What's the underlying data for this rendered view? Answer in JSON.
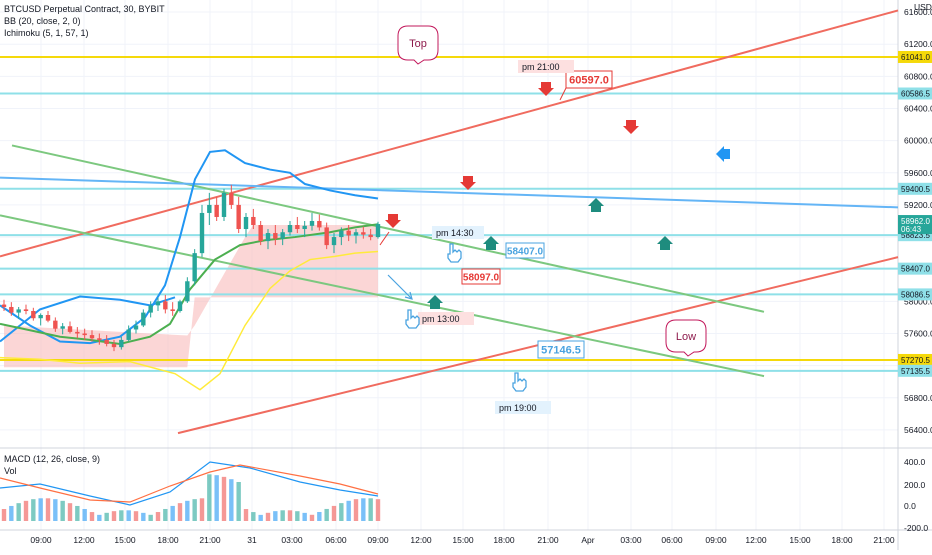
{
  "header": {
    "symbol_line": "BTCUSD Perpetual Contract, 30, BYBIT",
    "bb_line": "BB (20, close, 2, 0)",
    "ichimoku_line": "Ichimoku (5, 1, 57, 1)",
    "currency": "USD"
  },
  "macd_panel": {
    "macd_label": "MACD (12, 26, close, 9)",
    "vol_label": "Vol"
  },
  "colors": {
    "bull": "#26a69a",
    "bear": "#ef5350",
    "bb_line": "#2196f3",
    "ichimoku_line": "#4caf50",
    "lagging_line": "#ffeb3b",
    "cloud": "#f8b4b4",
    "trend_red": "#f06b5f",
    "trend_green": "#7cc87f",
    "trend_blue": "#64b5f6",
    "hline_yellow": "#f5d90a",
    "hline_cyan": "#8fe0e8"
  },
  "chart_data": {
    "type": "candlestick",
    "title": "BTCUSD Perpetual Contract, 30, BYBIT",
    "ylabel": "USD",
    "ylim": [
      56200,
      61750
    ],
    "y_ticks": [
      56400,
      56800,
      57200,
      57600,
      58000,
      58400,
      58800,
      59200,
      59600,
      60000,
      60400,
      60800,
      61200,
      61600
    ],
    "x_ticks": [
      "09:00",
      "12:00",
      "15:00",
      "18:00",
      "21:00",
      "31",
      "03:00",
      "06:00",
      "09:00",
      "12:00",
      "15:00",
      "18:00",
      "21:00",
      "Apr",
      "03:00",
      "06:00",
      "09:00",
      "12:00",
      "15:00",
      "18:00",
      "21:00"
    ],
    "last_price": {
      "value": "58962.0",
      "countdown": "06:43"
    },
    "price_tags": [
      {
        "value": "61041.0",
        "kind": "yellow"
      },
      {
        "value": "60586.5",
        "kind": "cyan"
      },
      {
        "value": "59400.5",
        "kind": "cyan"
      },
      {
        "value": "58823.5",
        "kind": "cyan"
      },
      {
        "value": "58407.0",
        "kind": "cyan"
      },
      {
        "value": "58086.5",
        "kind": "cyan"
      },
      {
        "value": "57270.5",
        "kind": "yellow"
      },
      {
        "value": "57135.5",
        "kind": "cyan"
      }
    ],
    "horizontal_levels": [
      {
        "price": 61041,
        "color": "yellow"
      },
      {
        "price": 60586.5,
        "color": "cyan"
      },
      {
        "price": 59400.5,
        "color": "cyan"
      },
      {
        "price": 58823.5,
        "color": "cyan"
      },
      {
        "price": 58407,
        "color": "cyan"
      },
      {
        "price": 58086.5,
        "color": "cyan"
      },
      {
        "price": 57270.5,
        "color": "yellow"
      },
      {
        "price": 57135.5,
        "color": "cyan"
      }
    ],
    "callouts": {
      "top": "Top",
      "low": "Low",
      "target_high": "60597.0",
      "target_mid_blue": "58407.0",
      "target_mid_red": "58097.0",
      "target_low": "57146.5",
      "time_2100": "pm 21:00",
      "time_1430": "pm 14:30",
      "time_1300": "pm 13:00",
      "time_1900": "pm 19:00"
    },
    "candles": [
      [
        57960,
        58020,
        57880,
        57930
      ],
      [
        57930,
        57990,
        57820,
        57860
      ],
      [
        57860,
        57930,
        57780,
        57900
      ],
      [
        57900,
        57960,
        57840,
        57880
      ],
      [
        57880,
        57920,
        57760,
        57790
      ],
      [
        57790,
        57850,
        57700,
        57830
      ],
      [
        57830,
        57880,
        57740,
        57760
      ],
      [
        57760,
        57800,
        57620,
        57660
      ],
      [
        57660,
        57730,
        57590,
        57690
      ],
      [
        57690,
        57750,
        57600,
        57620
      ],
      [
        57620,
        57680,
        57540,
        57600
      ],
      [
        57600,
        57660,
        57520,
        57580
      ],
      [
        57580,
        57640,
        57500,
        57540
      ],
      [
        57540,
        57600,
        57460,
        57520
      ],
      [
        57520,
        57580,
        57440,
        57470
      ],
      [
        57470,
        57520,
        57380,
        57430
      ],
      [
        57430,
        57560,
        57400,
        57520
      ],
      [
        57520,
        57700,
        57500,
        57650
      ],
      [
        57650,
        57760,
        57600,
        57700
      ],
      [
        57700,
        57900,
        57680,
        57860
      ],
      [
        57860,
        58000,
        57800,
        57950
      ],
      [
        57950,
        58050,
        57880,
        58000
      ],
      [
        58000,
        58080,
        57850,
        57900
      ],
      [
        57900,
        57990,
        57820,
        57880
      ],
      [
        57880,
        58020,
        57860,
        58000
      ],
      [
        58000,
        58300,
        57980,
        58250
      ],
      [
        58250,
        58650,
        58200,
        58600
      ],
      [
        58600,
        59200,
        58550,
        59100
      ],
      [
        59100,
        59350,
        58950,
        59200
      ],
      [
        59200,
        59300,
        59000,
        59050
      ],
      [
        59050,
        59400,
        59000,
        59350
      ],
      [
        59350,
        59450,
        59150,
        59200
      ],
      [
        59200,
        59300,
        58850,
        58900
      ],
      [
        58900,
        59100,
        58800,
        59050
      ],
      [
        59050,
        59150,
        58900,
        58950
      ],
      [
        58950,
        59000,
        58700,
        58750
      ],
      [
        58750,
        58900,
        58650,
        58850
      ],
      [
        58850,
        58950,
        58700,
        58780
      ],
      [
        58780,
        58900,
        58700,
        58860
      ],
      [
        58860,
        59000,
        58820,
        58950
      ],
      [
        58950,
        59050,
        58850,
        58900
      ],
      [
        58900,
        59000,
        58800,
        58940
      ],
      [
        58940,
        59100,
        58880,
        59000
      ],
      [
        59000,
        59080,
        58880,
        58920
      ],
      [
        58920,
        58980,
        58650,
        58700
      ],
      [
        58700,
        58850,
        58600,
        58800
      ],
      [
        58800,
        58920,
        58700,
        58880
      ],
      [
        58880,
        58950,
        58750,
        58820
      ],
      [
        58820,
        58900,
        58720,
        58860
      ],
      [
        58860,
        58930,
        58780,
        58830
      ],
      [
        58830,
        58900,
        58760,
        58800
      ],
      [
        58800,
        58990,
        58780,
        58962
      ]
    ],
    "macd_axis_ticks": [
      "400.0",
      "200.0",
      "0.0",
      "-200.0"
    ]
  }
}
